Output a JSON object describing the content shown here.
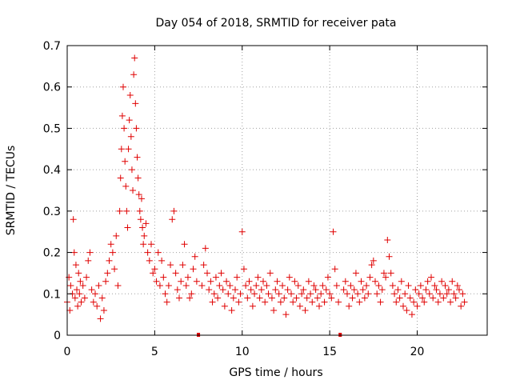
{
  "chart_data": {
    "type": "scatter",
    "title": "Day 054 of 2018, SRMTID for receiver pata",
    "xlabel": "GPS time / hours",
    "ylabel": "SRMTID / TECUs",
    "xlim": [
      0,
      24
    ],
    "ylim": [
      0,
      0.7
    ],
    "xticks": [
      "0",
      "5",
      "10",
      "15",
      "20"
    ],
    "yticks": [
      "0",
      "0.1",
      "0.2",
      "0.3",
      "0.4",
      "0.5",
      "0.6",
      "0.7"
    ],
    "grid": true,
    "marker": "plus",
    "color": "#e00000",
    "data_gaps_hours": [
      7.5,
      15.6
    ],
    "series": [
      {
        "name": "SRMTID",
        "x": [
          0.0,
          0.1,
          0.15,
          0.2,
          0.3,
          0.35,
          0.4,
          0.45,
          0.5,
          0.55,
          0.6,
          0.65,
          0.7,
          0.75,
          0.8,
          0.9,
          1.0,
          1.1,
          1.2,
          1.3,
          1.4,
          1.5,
          1.6,
          1.7,
          1.8,
          1.9,
          2.0,
          2.1,
          2.2,
          2.3,
          2.4,
          2.5,
          2.6,
          2.7,
          2.8,
          2.9,
          3.0,
          3.05,
          3.1,
          3.15,
          3.2,
          3.25,
          3.3,
          3.35,
          3.4,
          3.45,
          3.5,
          3.55,
          3.6,
          3.65,
          3.7,
          3.75,
          3.8,
          3.85,
          3.9,
          3.95,
          4.0,
          4.05,
          4.1,
          4.15,
          4.2,
          4.25,
          4.3,
          4.35,
          4.4,
          4.5,
          4.6,
          4.7,
          4.8,
          4.9,
          5.0,
          5.1,
          5.2,
          5.3,
          5.4,
          5.5,
          5.6,
          5.7,
          5.8,
          5.9,
          6.0,
          6.1,
          6.2,
          6.3,
          6.4,
          6.5,
          6.6,
          6.7,
          6.8,
          6.9,
          7.0,
          7.1,
          7.2,
          7.3,
          7.4,
          7.7,
          7.8,
          7.9,
          8.0,
          8.1,
          8.2,
          8.3,
          8.4,
          8.5,
          8.6,
          8.7,
          8.8,
          8.9,
          9.0,
          9.1,
          9.2,
          9.3,
          9.4,
          9.5,
          9.6,
          9.7,
          9.8,
          9.9,
          10.0,
          10.1,
          10.2,
          10.3,
          10.4,
          10.5,
          10.6,
          10.7,
          10.8,
          10.9,
          11.0,
          11.1,
          11.2,
          11.3,
          11.4,
          11.5,
          11.6,
          11.7,
          11.8,
          11.9,
          12.0,
          12.1,
          12.2,
          12.3,
          12.4,
          12.5,
          12.6,
          12.7,
          12.8,
          12.9,
          13.0,
          13.1,
          13.2,
          13.3,
          13.4,
          13.5,
          13.6,
          13.7,
          13.8,
          13.9,
          14.0,
          14.1,
          14.2,
          14.3,
          14.4,
          14.5,
          14.6,
          14.7,
          14.8,
          14.9,
          15.0,
          15.1,
          15.2,
          15.3,
          15.4,
          15.5,
          15.8,
          15.9,
          16.0,
          16.1,
          16.2,
          16.3,
          16.4,
          16.5,
          16.6,
          16.7,
          16.8,
          16.9,
          17.0,
          17.1,
          17.2,
          17.3,
          17.4,
          17.5,
          17.6,
          17.7,
          17.8,
          17.9,
          18.0,
          18.1,
          18.2,
          18.3,
          18.4,
          18.5,
          18.6,
          18.7,
          18.8,
          18.9,
          19.0,
          19.1,
          19.2,
          19.3,
          19.4,
          19.5,
          19.6,
          19.7,
          19.8,
          19.9,
          20.0,
          20.1,
          20.2,
          20.3,
          20.4,
          20.5,
          20.6,
          20.7,
          20.8,
          20.9,
          21.0,
          21.1,
          21.2,
          21.3,
          21.4,
          21.5,
          21.6,
          21.7,
          21.8,
          21.9,
          22.0,
          22.1,
          22.2,
          22.3,
          22.4,
          22.5,
          22.6,
          22.7
        ],
        "y": [
          0.08,
          0.14,
          0.06,
          0.12,
          0.1,
          0.28,
          0.2,
          0.09,
          0.17,
          0.11,
          0.07,
          0.15,
          0.1,
          0.13,
          0.08,
          0.12,
          0.09,
          0.14,
          0.18,
          0.2,
          0.11,
          0.08,
          0.1,
          0.07,
          0.12,
          0.04,
          0.09,
          0.06,
          0.13,
          0.15,
          0.18,
          0.22,
          0.2,
          0.16,
          0.24,
          0.12,
          0.3,
          0.38,
          0.45,
          0.53,
          0.6,
          0.5,
          0.42,
          0.36,
          0.3,
          0.26,
          0.45,
          0.52,
          0.58,
          0.48,
          0.4,
          0.35,
          0.63,
          0.67,
          0.56,
          0.5,
          0.43,
          0.38,
          0.34,
          0.3,
          0.28,
          0.33,
          0.26,
          0.22,
          0.24,
          0.27,
          0.2,
          0.18,
          0.22,
          0.15,
          0.16,
          0.13,
          0.2,
          0.12,
          0.18,
          0.14,
          0.1,
          0.08,
          0.12,
          0.17,
          0.28,
          0.3,
          0.15,
          0.11,
          0.09,
          0.13,
          0.17,
          0.22,
          0.12,
          0.14,
          0.09,
          0.1,
          0.16,
          0.19,
          0.13,
          0.12,
          0.17,
          0.21,
          0.15,
          0.11,
          0.13,
          0.08,
          0.1,
          0.14,
          0.09,
          0.12,
          0.15,
          0.11,
          0.07,
          0.13,
          0.1,
          0.12,
          0.06,
          0.09,
          0.11,
          0.14,
          0.08,
          0.1,
          0.25,
          0.16,
          0.12,
          0.09,
          0.13,
          0.11,
          0.07,
          0.1,
          0.12,
          0.14,
          0.09,
          0.11,
          0.13,
          0.08,
          0.12,
          0.1,
          0.15,
          0.09,
          0.06,
          0.11,
          0.13,
          0.1,
          0.08,
          0.12,
          0.09,
          0.05,
          0.11,
          0.14,
          0.1,
          0.08,
          0.13,
          0.09,
          0.12,
          0.07,
          0.1,
          0.11,
          0.06,
          0.09,
          0.13,
          0.1,
          0.08,
          0.12,
          0.11,
          0.09,
          0.07,
          0.1,
          0.12,
          0.08,
          0.11,
          0.14,
          0.1,
          0.09,
          0.25,
          0.16,
          0.12,
          0.08,
          0.11,
          0.13,
          0.1,
          0.07,
          0.12,
          0.09,
          0.11,
          0.15,
          0.1,
          0.08,
          0.13,
          0.11,
          0.09,
          0.12,
          0.1,
          0.14,
          0.17,
          0.18,
          0.13,
          0.1,
          0.12,
          0.08,
          0.11,
          0.15,
          0.14,
          0.23,
          0.19,
          0.15,
          0.12,
          0.1,
          0.08,
          0.11,
          0.09,
          0.13,
          0.07,
          0.1,
          0.06,
          0.12,
          0.09,
          0.05,
          0.08,
          0.11,
          0.07,
          0.1,
          0.12,
          0.09,
          0.08,
          0.11,
          0.13,
          0.1,
          0.14,
          0.09,
          0.12,
          0.11,
          0.08,
          0.1,
          0.13,
          0.09,
          0.12,
          0.1,
          0.11,
          0.08,
          0.13,
          0.1,
          0.09,
          0.12,
          0.11,
          0.07,
          0.1,
          0.08
        ]
      }
    ]
  }
}
